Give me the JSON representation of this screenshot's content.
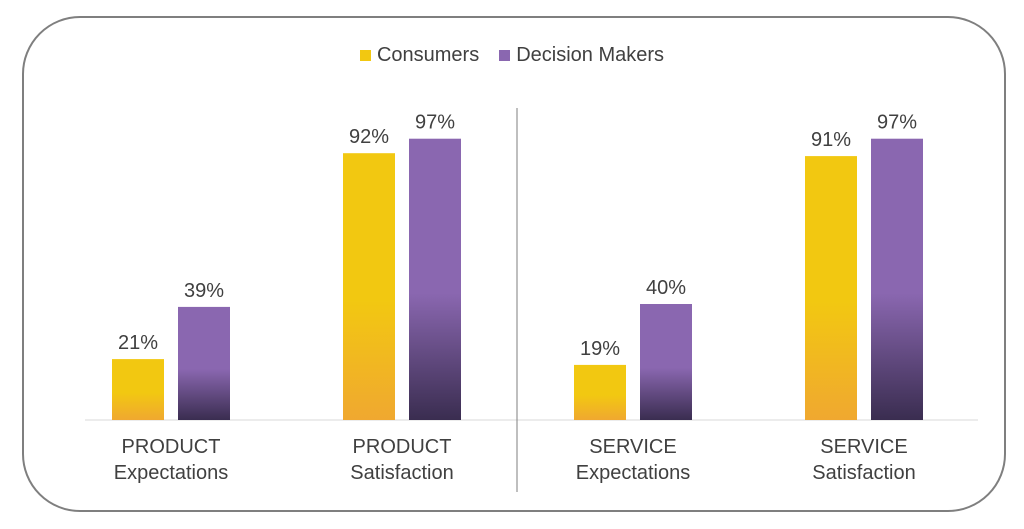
{
  "chart_data": {
    "type": "bar",
    "categories": [
      [
        "PRODUCT",
        "Expectations"
      ],
      [
        "PRODUCT",
        "Satisfaction"
      ],
      [
        "SERVICE",
        "Expectations"
      ],
      [
        "SERVICE",
        "Satisfaction"
      ]
    ],
    "series": [
      {
        "name": "Consumers",
        "values": [
          21,
          92,
          19,
          91
        ],
        "labels": [
          "21%",
          "92%",
          "19%",
          "91%"
        ],
        "color_top": "#f2c811",
        "color_bottom": "#f0a830"
      },
      {
        "name": "Decision Makers",
        "values": [
          39,
          97,
          40,
          97
        ],
        "labels": [
          "39%",
          "97%",
          "40%",
          "97%"
        ],
        "color_top": "#8a67b0",
        "color_bottom": "#3a2d50"
      }
    ],
    "ylim": [
      0,
      100
    ],
    "legend_position": "top-center",
    "grid": false,
    "divider_between_groups": true
  },
  "legend": {
    "items": [
      {
        "label": "Consumers",
        "color": "#f2c811"
      },
      {
        "label": "Decision Makers",
        "color": "#8a67b0"
      }
    ]
  }
}
